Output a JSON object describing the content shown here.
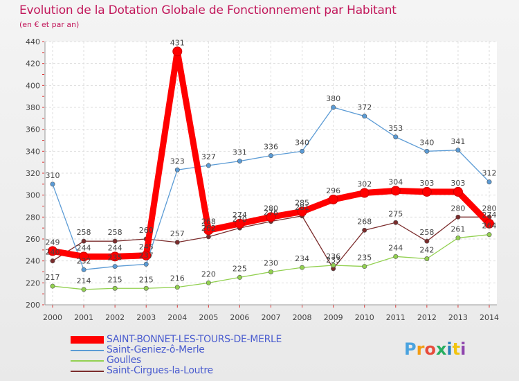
{
  "title": "Evolution de la Dotation Globale de Fonctionnement par Habitant",
  "subtitle": "(en € et par an)",
  "chart_data": {
    "type": "line",
    "x": [
      "2000",
      "2001",
      "2002",
      "2003",
      "2004",
      "2005",
      "2006",
      "2007",
      "2008",
      "2009",
      "2010",
      "2011",
      "2012",
      "2013",
      "2014"
    ],
    "ylim": [
      200,
      440
    ],
    "yticks": [
      200,
      220,
      240,
      260,
      280,
      300,
      320,
      340,
      360,
      380,
      400,
      420,
      440
    ],
    "grid": true,
    "legend_position": "bottom-left",
    "series": [
      {
        "name": "SAINT-BONNET-LES-TOURS-DE-MERLE",
        "color": "#ff0000",
        "values": [
          249,
          244,
          244,
          245,
          431,
          268,
          274,
          280,
          285,
          296,
          302,
          304,
          303,
          303,
          274
        ]
      },
      {
        "name": "Saint-Geniez-ô-Merle",
        "color": "#5b9bd5",
        "values": [
          310,
          232,
          235,
          237,
          323,
          327,
          331,
          336,
          340,
          380,
          372,
          353,
          340,
          341,
          312
        ]
      },
      {
        "name": "Goulles",
        "color": "#92d050",
        "values": [
          217,
          214,
          215,
          215,
          216,
          220,
          225,
          230,
          234,
          236,
          235,
          244,
          242,
          261,
          264
        ]
      },
      {
        "name": "Saint-Cirgues-la-Loutre",
        "color": "#7b2c2c",
        "values": [
          240,
          258,
          258,
          260,
          257,
          262,
          270,
          276,
          281,
          233,
          268,
          275,
          258,
          280,
          280
        ]
      }
    ]
  },
  "logo": {
    "text": "Proxiti"
  }
}
